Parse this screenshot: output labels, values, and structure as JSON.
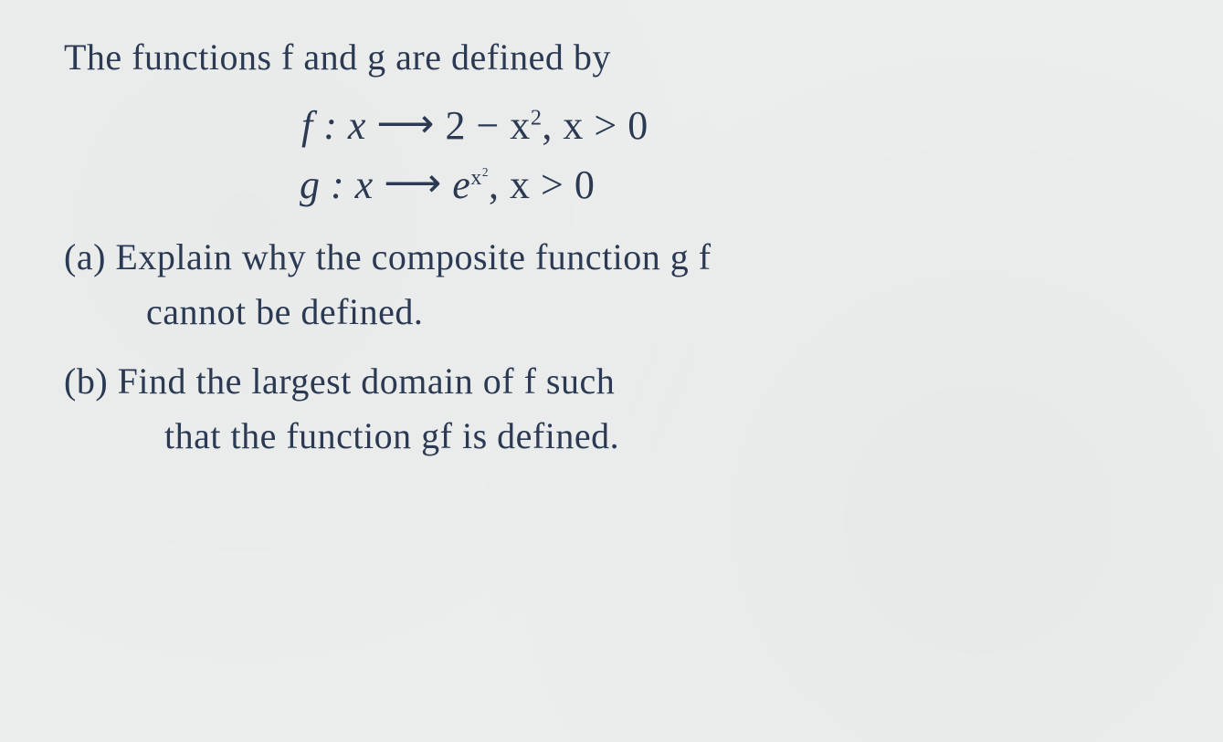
{
  "colors": {
    "ink": "#2b3a52",
    "paper": "#eceeee"
  },
  "font": {
    "family": "Segoe Script / Comic Sans MS / cursive",
    "size_pt_body": 40,
    "size_pt_defs": 44
  },
  "content": {
    "intro": "The functions  f  and  g  are defined by",
    "def_f_lhs": "f : x",
    "arrow": "⟶",
    "def_f_rhs": "2 − x",
    "def_f_exp": "2",
    "def_f_cond": ",   x > 0",
    "def_g_lhs": "g : x",
    "def_g_rhs_e": "e",
    "def_g_exp_x": "x",
    "def_g_exp_2": "2",
    "def_g_cond": ",   x > 0",
    "a_label": "(a)",
    "a_line1_rest": " Explain  why  the  composite  function  g f",
    "a_line2": "cannot  be  defined.",
    "b_label": "(b)",
    "b_line1_rest": " Find  the largest  domain  of  f  such",
    "b_line2": "that  the  function  gf  is  defined."
  }
}
